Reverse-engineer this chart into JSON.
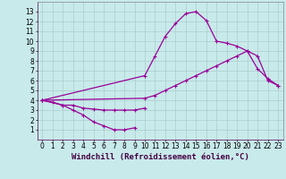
{
  "xlabel": "Windchill (Refroidissement éolien,°C)",
  "bg_color": "#c8eaea",
  "line_color": "#990099",
  "grid_color": "#aacccc",
  "xlim": [
    -0.5,
    23.5
  ],
  "ylim": [
    0,
    14
  ],
  "xticks": [
    0,
    1,
    2,
    3,
    4,
    5,
    6,
    7,
    8,
    9,
    10,
    11,
    12,
    13,
    14,
    15,
    16,
    17,
    18,
    19,
    20,
    21,
    22,
    23
  ],
  "yticks": [
    1,
    2,
    3,
    4,
    5,
    6,
    7,
    8,
    9,
    10,
    11,
    12,
    13
  ],
  "line1_x": [
    0,
    1,
    2,
    3,
    4,
    5,
    6,
    7,
    8,
    9
  ],
  "line1_y": [
    4.0,
    3.8,
    3.5,
    3.0,
    2.5,
    1.8,
    1.4,
    1.0,
    1.0,
    1.2
  ],
  "line2_x": [
    0,
    2,
    3,
    4,
    5,
    6,
    7,
    8,
    9,
    10
  ],
  "line2_y": [
    4.0,
    3.5,
    3.5,
    3.2,
    3.1,
    3.0,
    3.0,
    3.0,
    3.0,
    3.2
  ],
  "line3_x": [
    0,
    10,
    11,
    12,
    13,
    14,
    15,
    16,
    17,
    18,
    19,
    20,
    21,
    22,
    23
  ],
  "line3_y": [
    4.0,
    6.5,
    8.5,
    10.5,
    11.8,
    12.8,
    13.0,
    12.1,
    10.0,
    9.8,
    9.5,
    9.0,
    7.2,
    6.2,
    5.5
  ],
  "line4_x": [
    0,
    10,
    11,
    12,
    13,
    14,
    15,
    16,
    17,
    18,
    19,
    20,
    21,
    22,
    23
  ],
  "line4_y": [
    4.0,
    4.2,
    4.5,
    5.0,
    5.5,
    6.0,
    6.5,
    7.0,
    7.5,
    8.0,
    8.5,
    9.0,
    8.5,
    6.0,
    5.5
  ],
  "xlabel_fontsize": 6.5,
  "tick_fontsize": 5.5,
  "line_width": 0.9,
  "marker_size": 3.5
}
